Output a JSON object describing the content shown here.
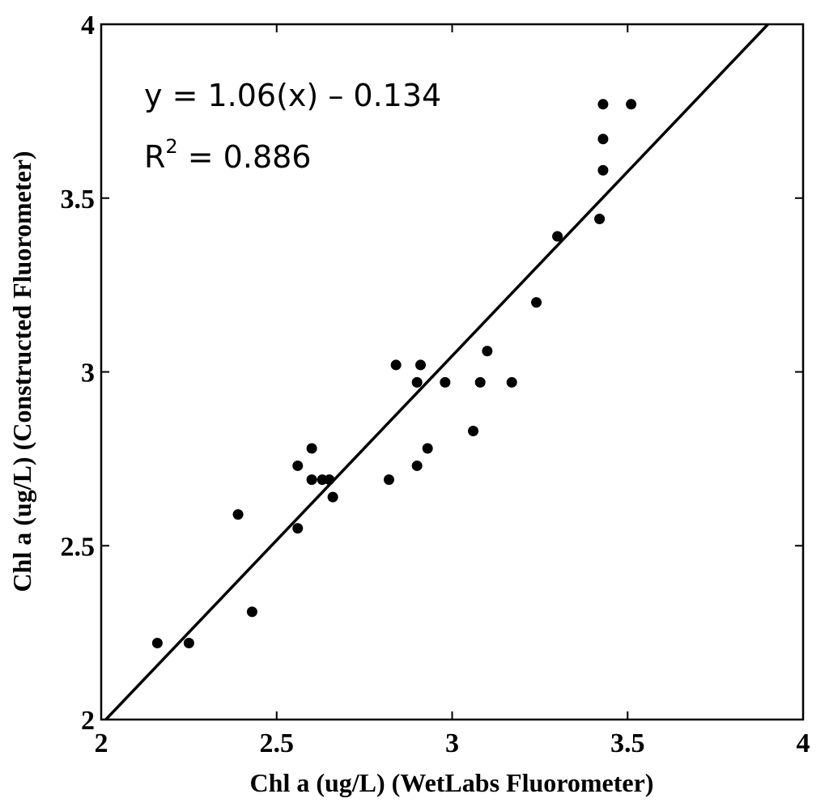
{
  "chart_data": {
    "type": "scatter",
    "xlabel": "Chl a (ug/L) (WetLabs Fluorometer)",
    "ylabel": "Chl a (ug/L) (Constructed Fluorometer)",
    "xlim": [
      2,
      4
    ],
    "ylim": [
      2,
      4
    ],
    "x_ticks": [
      "2",
      "2.5",
      "3",
      "3.5",
      "4"
    ],
    "y_ticks": [
      "2",
      "2.5",
      "3",
      "3.5",
      "4"
    ],
    "grid": false,
    "points": [
      {
        "x": 2.16,
        "y": 2.22
      },
      {
        "x": 2.25,
        "y": 2.22
      },
      {
        "x": 2.39,
        "y": 2.59
      },
      {
        "x": 2.43,
        "y": 2.31
      },
      {
        "x": 2.56,
        "y": 2.73
      },
      {
        "x": 2.56,
        "y": 2.55
      },
      {
        "x": 2.6,
        "y": 2.78
      },
      {
        "x": 2.6,
        "y": 2.69
      },
      {
        "x": 2.63,
        "y": 2.69
      },
      {
        "x": 2.65,
        "y": 2.69
      },
      {
        "x": 2.66,
        "y": 2.64
      },
      {
        "x": 2.82,
        "y": 2.69
      },
      {
        "x": 2.84,
        "y": 3.02
      },
      {
        "x": 2.9,
        "y": 2.97
      },
      {
        "x": 2.9,
        "y": 2.73
      },
      {
        "x": 2.91,
        "y": 3.02
      },
      {
        "x": 2.93,
        "y": 2.78
      },
      {
        "x": 2.98,
        "y": 2.97
      },
      {
        "x": 3.06,
        "y": 2.83
      },
      {
        "x": 3.08,
        "y": 2.97
      },
      {
        "x": 3.1,
        "y": 3.06
      },
      {
        "x": 3.17,
        "y": 2.97
      },
      {
        "x": 3.24,
        "y": 3.2
      },
      {
        "x": 3.3,
        "y": 3.39
      },
      {
        "x": 3.42,
        "y": 3.44
      },
      {
        "x": 3.43,
        "y": 3.58
      },
      {
        "x": 3.43,
        "y": 3.67
      },
      {
        "x": 3.43,
        "y": 3.77
      },
      {
        "x": 3.51,
        "y": 3.77
      }
    ],
    "fit_line": {
      "slope": 1.06,
      "intercept": -0.134
    },
    "annotations": {
      "equation": "y = 1.06(x) – 0.134",
      "r2_prefix": "R",
      "r2_sup": "2",
      "r2_value": " = 0.886"
    }
  }
}
